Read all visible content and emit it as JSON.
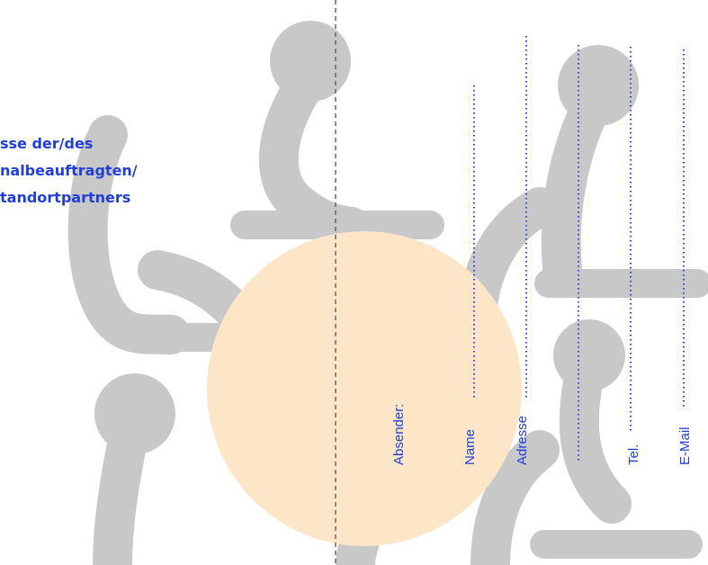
{
  "address_heading": {
    "lines": [
      "sse der/des",
      "nalbeauftragten/",
      "tandortpartners"
    ]
  },
  "sender": {
    "label": "Absender:",
    "fields": [
      "Name",
      "Adresse",
      "Tel.",
      "E-Mail"
    ]
  }
}
